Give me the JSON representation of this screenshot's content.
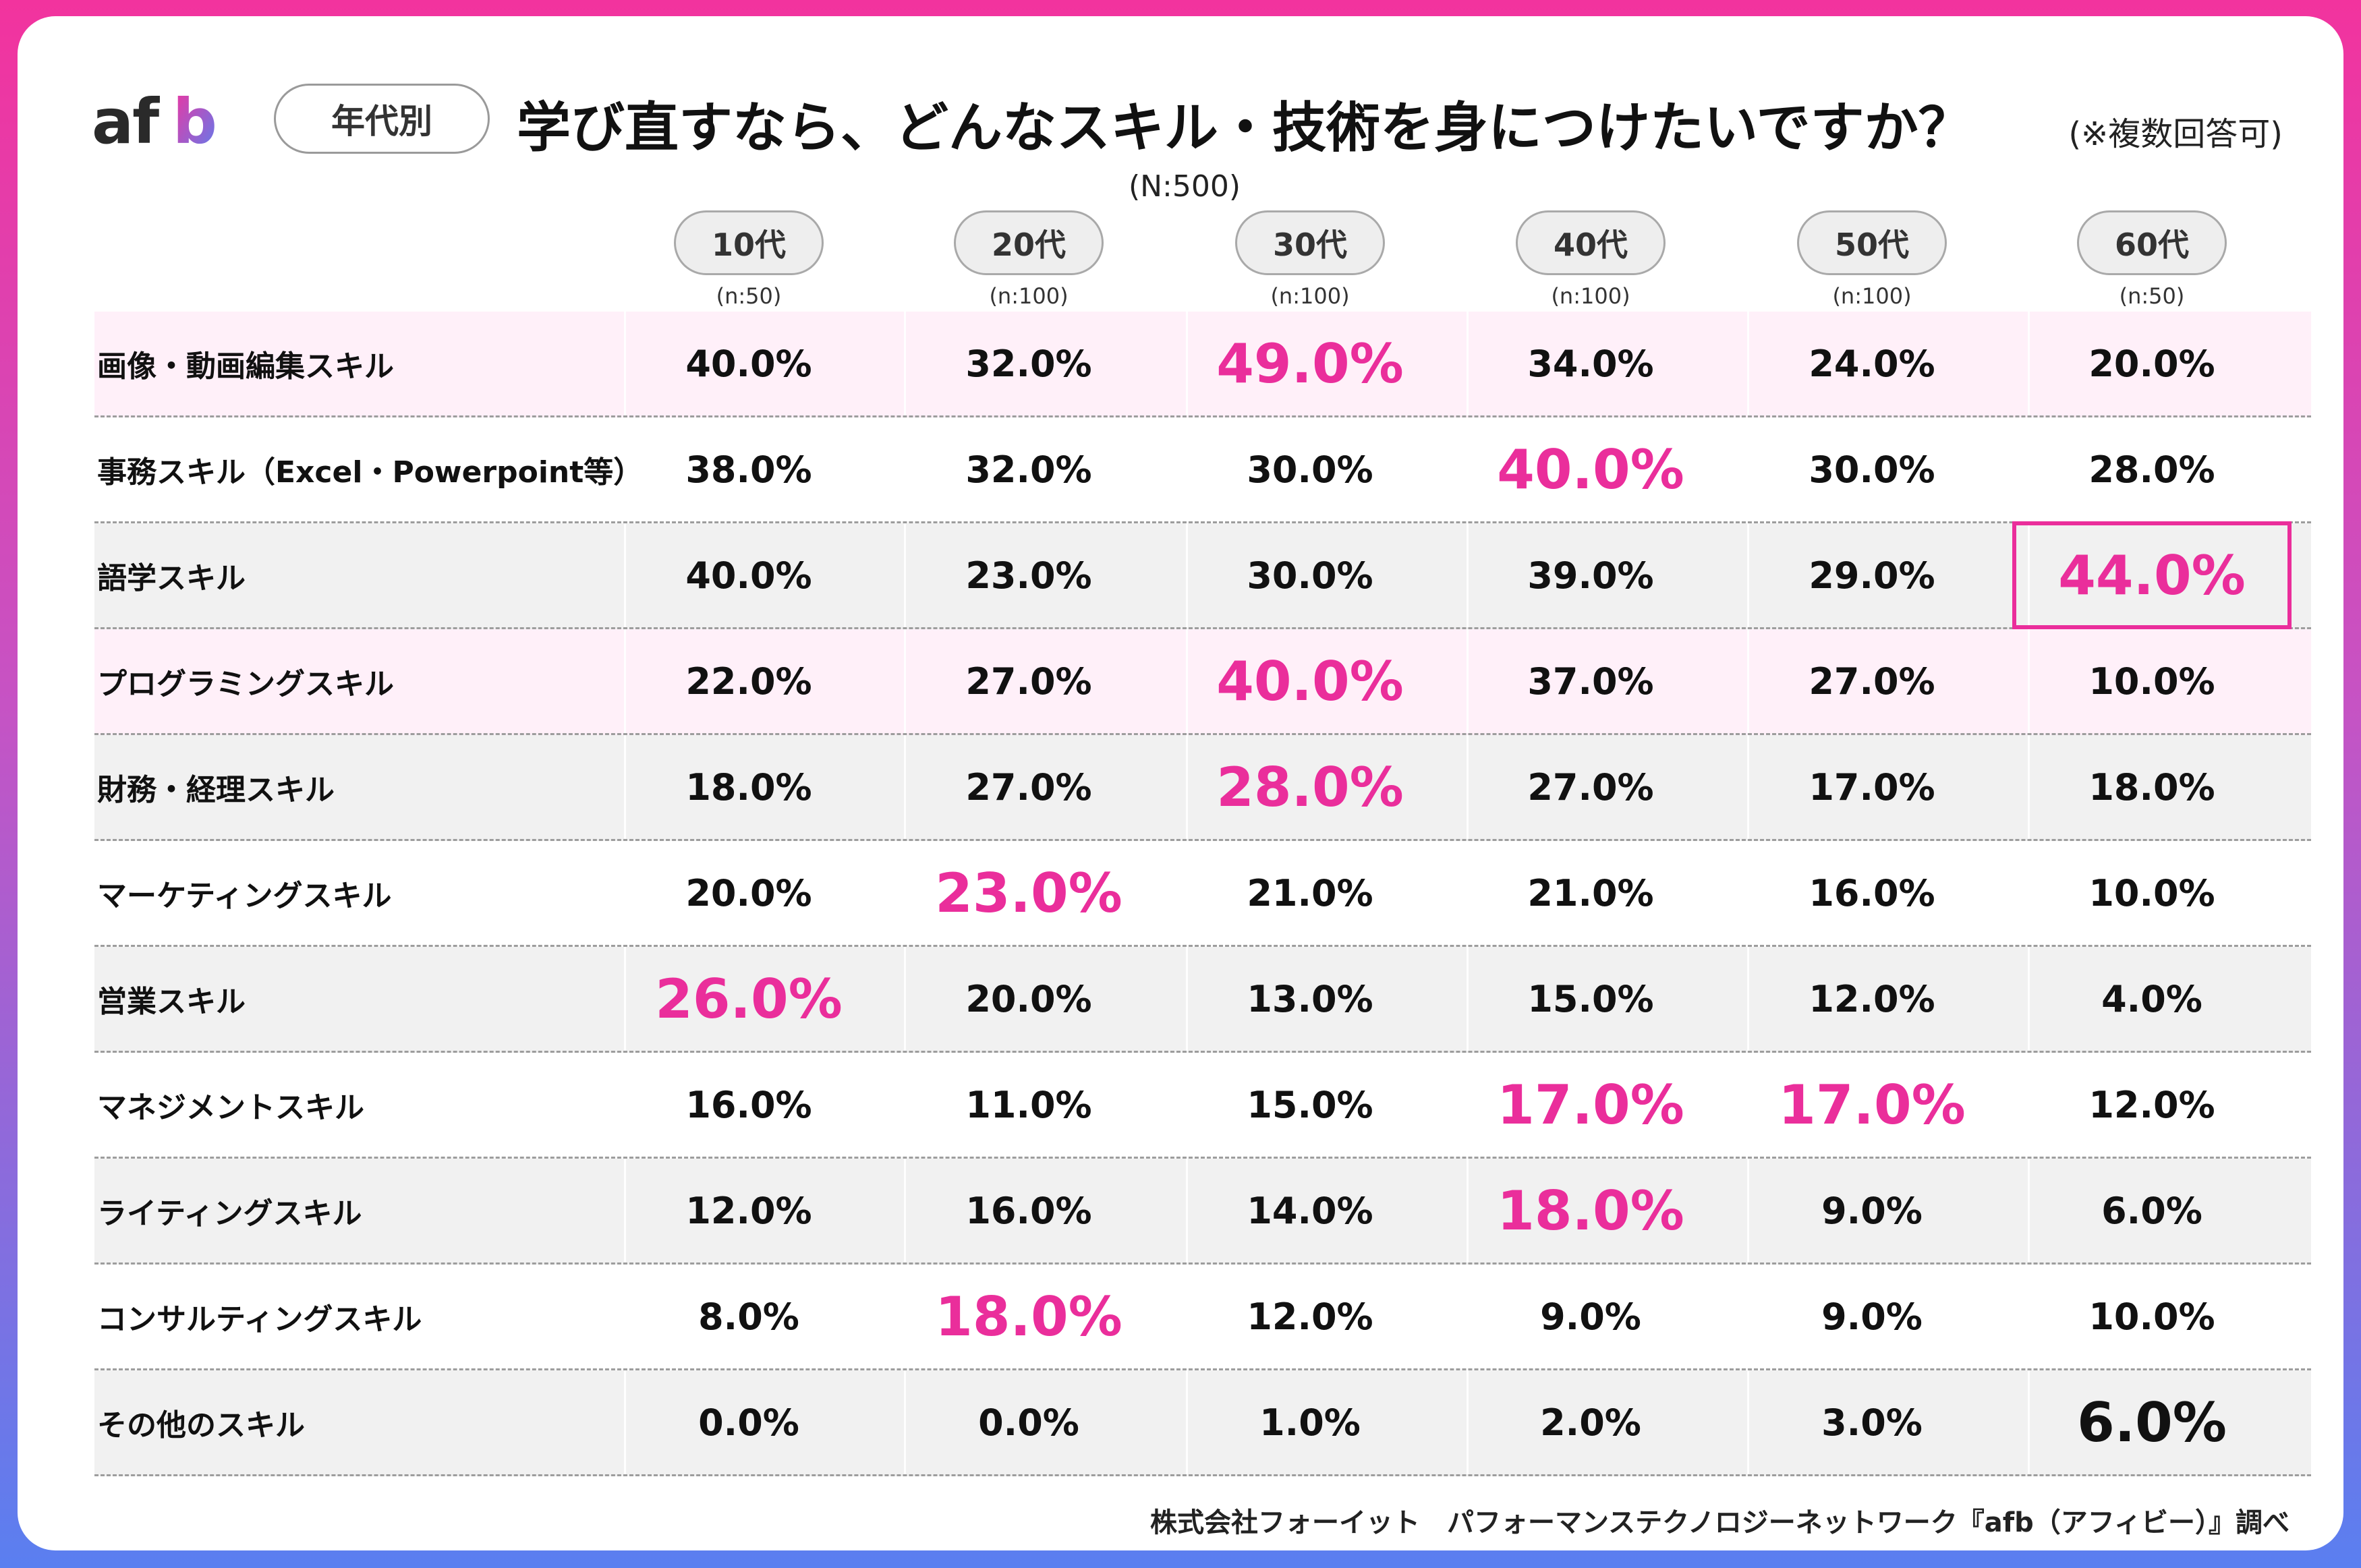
{
  "header": {
    "logo_text": "afb",
    "tag": "年代別",
    "title": "学び直すなら、どんなスキル・技術を身につけたいですか？",
    "note": "(※複数回答可)",
    "sample_total": "(N:500)"
  },
  "colors": {
    "accent": "#ea2e9b",
    "frame_top": "#f2339e",
    "frame_bottom": "#5a7ff0",
    "row_pink": "#fff0f9",
    "row_gray": "#f1f1f1"
  },
  "chart_data": {
    "type": "table",
    "columns": [
      {
        "label": "10代",
        "n": "(n:50)"
      },
      {
        "label": "20代",
        "n": "(n:100)"
      },
      {
        "label": "30代",
        "n": "(n:100)"
      },
      {
        "label": "40代",
        "n": "(n:100)"
      },
      {
        "label": "50代",
        "n": "(n:100)"
      },
      {
        "label": "60代",
        "n": "(n:50)"
      }
    ],
    "rows": [
      {
        "label": "画像・動画編集スキル",
        "values": [
          "40.0%",
          "32.0%",
          "49.0%",
          "34.0%",
          "24.0%",
          "20.0%"
        ],
        "highlight": [
          2
        ]
      },
      {
        "label": "事務スキル（Excel・Powerpoint等）",
        "values": [
          "38.0%",
          "32.0%",
          "30.0%",
          "40.0%",
          "30.0%",
          "28.0%"
        ],
        "highlight": [
          3
        ]
      },
      {
        "label": "語学スキル",
        "values": [
          "40.0%",
          "23.0%",
          "30.0%",
          "39.0%",
          "29.0%",
          "44.0%"
        ],
        "highlight": [
          5
        ]
      },
      {
        "label": "プログラミングスキル",
        "values": [
          "22.0%",
          "27.0%",
          "40.0%",
          "37.0%",
          "27.0%",
          "10.0%"
        ],
        "highlight": [
          2
        ]
      },
      {
        "label": "財務・経理スキル",
        "values": [
          "18.0%",
          "27.0%",
          "28.0%",
          "27.0%",
          "17.0%",
          "18.0%"
        ],
        "highlight": [
          2
        ]
      },
      {
        "label": "マーケティングスキル",
        "values": [
          "20.0%",
          "23.0%",
          "21.0%",
          "21.0%",
          "16.0%",
          "10.0%"
        ],
        "highlight": [
          1
        ]
      },
      {
        "label": "営業スキル",
        "values": [
          "26.0%",
          "20.0%",
          "13.0%",
          "15.0%",
          "12.0%",
          "4.0%"
        ],
        "highlight": [
          0
        ]
      },
      {
        "label": "マネジメントスキル",
        "values": [
          "16.0%",
          "11.0%",
          "15.0%",
          "17.0%",
          "17.0%",
          "12.0%"
        ],
        "highlight": [
          3,
          4
        ]
      },
      {
        "label": "ライティングスキル",
        "values": [
          "12.0%",
          "16.0%",
          "14.0%",
          "18.0%",
          "9.0%",
          "6.0%"
        ],
        "highlight": [
          3
        ]
      },
      {
        "label": "コンサルティングスキル",
        "values": [
          "8.0%",
          "18.0%",
          "12.0%",
          "9.0%",
          "9.0%",
          "10.0%"
        ],
        "highlight": [
          1
        ]
      },
      {
        "label": "その他のスキル",
        "values": [
          "0.0%",
          "0.0%",
          "1.0%",
          "2.0%",
          "3.0%",
          "6.0%"
        ],
        "highlight_dark": [
          5
        ]
      }
    ],
    "boxed_cell": {
      "row": 2,
      "col": 5
    },
    "row_backgrounds": [
      "pink",
      "white",
      "gray",
      "pink",
      "gray",
      "white",
      "gray",
      "white",
      "gray",
      "white",
      "gray"
    ]
  },
  "footer": {
    "source": "株式会社フォーイット　パフォーマンステクノロジーネットワーク『afb（アフィビー）』調べ"
  }
}
